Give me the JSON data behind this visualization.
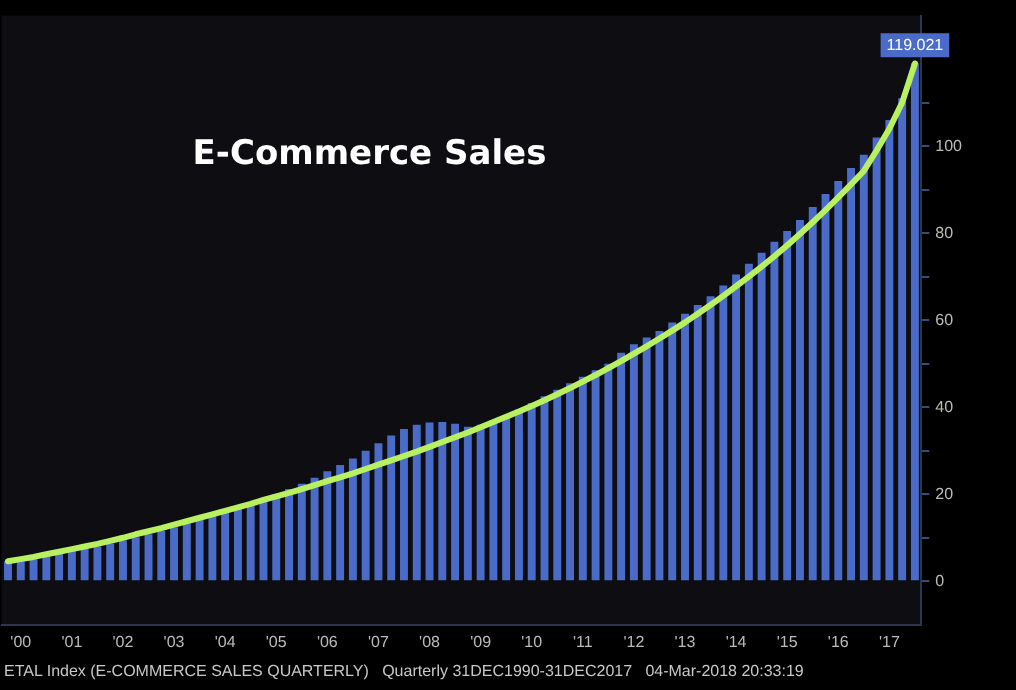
{
  "chart_data": {
    "type": "bar",
    "title": "E-Commerce Sales",
    "categories": [
      null,
      "'00",
      null,
      null,
      null,
      "'01",
      null,
      null,
      null,
      "'02",
      null,
      null,
      null,
      "'03",
      null,
      null,
      null,
      "'04",
      null,
      null,
      null,
      "'05",
      null,
      null,
      null,
      "'06",
      null,
      null,
      null,
      "'07",
      null,
      null,
      null,
      "'08",
      null,
      null,
      null,
      "'09",
      null,
      null,
      null,
      "'10",
      null,
      null,
      null,
      "'11",
      null,
      null,
      null,
      "'12",
      null,
      null,
      null,
      "'13",
      null,
      null,
      null,
      "'14",
      null,
      null,
      null,
      "'15",
      null,
      null,
      null,
      "'16",
      null,
      null,
      null,
      "'17",
      null,
      null
    ],
    "series": [
      {
        "color": "#4a6cc8",
        "values": [
          4.6,
          5.2,
          5.8,
          6.3,
          6.7,
          7.1,
          7.5,
          8.0,
          8.7,
          9.4,
          10.1,
          10.8,
          11.6,
          12.4,
          13.3,
          14.2,
          15.1,
          16.0,
          16.9,
          17.8,
          18.8,
          20.0,
          21.2,
          22.4,
          23.8,
          25.3,
          26.7,
          28.2,
          30.0,
          31.7,
          33.5,
          35.0,
          36.0,
          36.5,
          36.6,
          36.2,
          35.5,
          36.0,
          37.0,
          38.0,
          39.5,
          41.0,
          42.5,
          44.0,
          45.5,
          47.0,
          48.5,
          50.0,
          52.5,
          54.5,
          56.0,
          57.5,
          59.5,
          61.5,
          63.5,
          65.5,
          68.0,
          70.5,
          73.0,
          75.5,
          78.0,
          80.5,
          83.0,
          86.0,
          89.0,
          92.0,
          95.0,
          98.0,
          102.0,
          106.0,
          111.0,
          119.021
        ],
        "value_labels": [
          null,
          null,
          null,
          null,
          null,
          null,
          null,
          null,
          null,
          null,
          null,
          null,
          null,
          null,
          null,
          null,
          null,
          null,
          null,
          null,
          null,
          null,
          null,
          null,
          null,
          null,
          null,
          null,
          null,
          null,
          null,
          null,
          null,
          null,
          null,
          null,
          null,
          null,
          null,
          null,
          null,
          null,
          null,
          null,
          null,
          null,
          null,
          null,
          null,
          null,
          null,
          null,
          null,
          null,
          null,
          null,
          null,
          null,
          null,
          null,
          null,
          null,
          null,
          null,
          null,
          null,
          null,
          null,
          null,
          null,
          null,
          "119.021"
        ]
      },
      {
        "type": "line",
        "color": "#b8f060",
        "values": [
          4.6,
          5.1,
          5.6,
          6.2,
          6.8,
          7.4,
          8.0,
          8.6,
          9.3,
          10.0,
          10.8,
          11.5,
          12.2,
          13.0,
          13.8,
          14.6,
          15.4,
          16.2,
          17.0,
          17.8,
          18.7,
          19.5,
          20.3,
          21.2,
          22.1,
          23.0,
          23.9,
          24.8,
          25.8,
          26.8,
          27.8,
          28.8,
          29.8,
          30.9,
          32.0,
          33.1,
          34.2,
          35.4,
          36.6,
          37.8,
          39.0,
          40.3,
          41.6,
          43.0,
          44.4,
          45.9,
          47.4,
          49.0,
          50.6,
          52.3,
          54.0,
          55.8,
          57.6,
          59.5,
          61.5,
          63.5,
          65.6,
          67.8,
          70.0,
          72.3,
          74.7,
          77.2,
          79.8,
          82.5,
          85.3,
          88.2,
          91.2,
          94.3,
          99.0,
          104.0,
          110.0,
          119.0
        ]
      }
    ],
    "ylim": [
      -10,
      130
    ],
    "yticks": [
      0,
      {
        "value": 10,
        "label": null
      },
      20,
      {
        "value": 30,
        "label": null
      },
      40,
      {
        "value": 50,
        "label": null
      },
      60,
      {
        "value": 70,
        "label": null
      },
      80,
      {
        "value": 90,
        "label": null
      },
      100,
      {
        "value": 110,
        "label": null
      }
    ],
    "grid": false,
    "legend": false,
    "marker": "none",
    "annotations": [
      "ETAL Index (E-COMMERCE SALES QUARTERLY)   Quarterly 31DEC1990-31DEC2017   04-Mar-2018 20:33:19"
    ]
  }
}
